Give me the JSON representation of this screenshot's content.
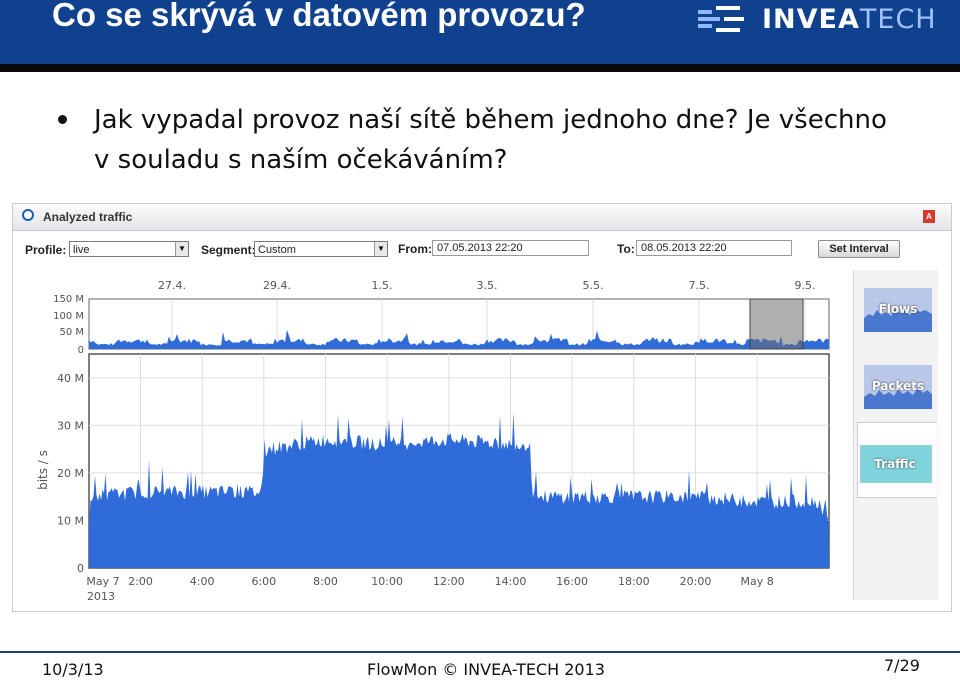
{
  "slide": {
    "title": "Co se skrývá v datovém provozu?",
    "bullet": "Jak vypadal provoz naší sítě během jednoho dne? Je všechno v souladu s naším očekáváním?"
  },
  "logo": {
    "text_a": "INVEA",
    "text_b": "TECH"
  },
  "app": {
    "title": "Analyzed traffic",
    "profile_label": "Profile:",
    "profile_value": "live",
    "segment_label": "Segment:",
    "segment_value": "Custom",
    "from_label": "From:",
    "from_value": "07.05.2013 22:20",
    "to_label": "To:",
    "to_value": "08.05.2013 22:20",
    "set_interval_label": "Set Interval",
    "tabs": [
      {
        "label": "Flows"
      },
      {
        "label": "Packets"
      },
      {
        "label": "Traffic"
      }
    ],
    "selected_tab": "Traffic"
  },
  "chart_data": [
    {
      "type": "area",
      "x_tick_labels": [
        "27.4.",
        "29.4.",
        "1.5.",
        "3.5.",
        "5.5.",
        "7.5.",
        "9.5."
      ],
      "y_tick_labels": [
        "150 M",
        "100 M",
        "50 M",
        "0"
      ],
      "ylim": [
        0,
        150000000
      ],
      "typical_level": 30000000,
      "highlight": {
        "from": "7.5.",
        "to": "8.5."
      },
      "color": "#2f6cd9"
    },
    {
      "type": "area",
      "ylabel": "bits / s",
      "ylim": [
        0,
        45000000
      ],
      "y_tick_labels": [
        "0",
        "10 M",
        "20 M",
        "30 M",
        "40 M"
      ],
      "x_tick_labels": [
        "May 7",
        "2:00",
        "4:00",
        "6:00",
        "8:00",
        "10:00",
        "12:00",
        "14:00",
        "16:00",
        "18:00",
        "20:00",
        "May 8"
      ],
      "x_sublabel": "2013",
      "series": [
        {
          "values": [
            {
              "x": "22:20",
              "y": 15
            },
            {
              "x": "0:00",
              "y": 16
            },
            {
              "x": "2:00",
              "y": 16
            },
            {
              "x": "3:55",
              "y": 16
            },
            {
              "x": "4:05",
              "y": 25
            },
            {
              "x": "6:00",
              "y": 27
            },
            {
              "x": "8:00",
              "y": 26
            },
            {
              "x": "10:00",
              "y": 27
            },
            {
              "x": "12:00",
              "y": 26
            },
            {
              "x": "12:35",
              "y": 26
            },
            {
              "x": "12:45",
              "y": 15
            },
            {
              "x": "14:00",
              "y": 15
            },
            {
              "x": "16:00",
              "y": 15
            },
            {
              "x": "18:00",
              "y": 15
            },
            {
              "x": "20:00",
              "y": 14
            },
            {
              "x": "22:00",
              "y": 14
            },
            {
              "x": "22:20",
              "y": 10
            }
          ],
          "unit": "Mbit/s"
        }
      ],
      "color": "#2f6cd9"
    }
  ],
  "footer": {
    "date": "10/3/13",
    "center": "FlowMon © INVEA-TECH 2013",
    "page": "7/29"
  }
}
